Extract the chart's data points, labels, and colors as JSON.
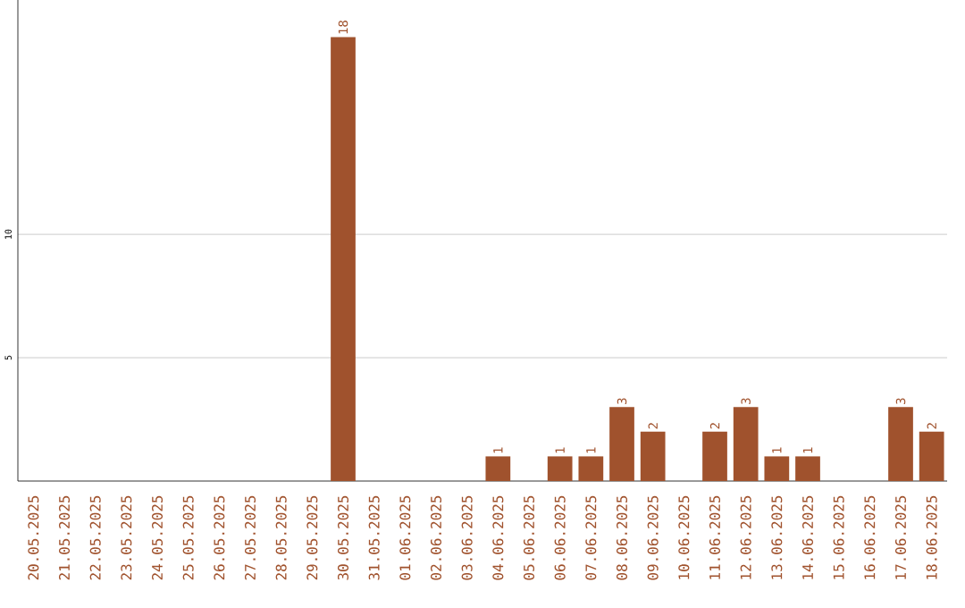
{
  "chart_data": {
    "type": "bar",
    "categories": [
      "20.05.2025",
      "21.05.2025",
      "22.05.2025",
      "23.05.2025",
      "24.05.2025",
      "25.05.2025",
      "26.05.2025",
      "27.05.2025",
      "28.05.2025",
      "29.05.2025",
      "30.05.2025",
      "31.05.2025",
      "01.06.2025",
      "02.06.2025",
      "03.06.2025",
      "04.06.2025",
      "05.06.2025",
      "06.06.2025",
      "07.06.2025",
      "08.06.2025",
      "09.06.2025",
      "10.06.2025",
      "11.06.2025",
      "12.06.2025",
      "13.06.2025",
      "14.06.2025",
      "15.06.2025",
      "16.06.2025",
      "17.06.2025",
      "18.06.2025"
    ],
    "values": [
      0,
      0,
      0,
      0,
      0,
      0,
      0,
      0,
      0,
      0,
      18,
      0,
      0,
      0,
      0,
      1,
      0,
      1,
      1,
      3,
      2,
      0,
      2,
      3,
      1,
      1,
      0,
      0,
      3,
      2
    ],
    "value_labels": [
      null,
      null,
      null,
      null,
      null,
      null,
      null,
      null,
      null,
      null,
      "18",
      null,
      null,
      null,
      null,
      "1",
      null,
      "1",
      "1",
      "3",
      "2",
      null,
      "2",
      "3",
      "1",
      "1",
      null,
      null,
      "3",
      "2"
    ],
    "color": "#a0522d",
    "ylim": [
      0,
      19.5
    ],
    "yticks": [
      5,
      10
    ],
    "grid": "y"
  }
}
